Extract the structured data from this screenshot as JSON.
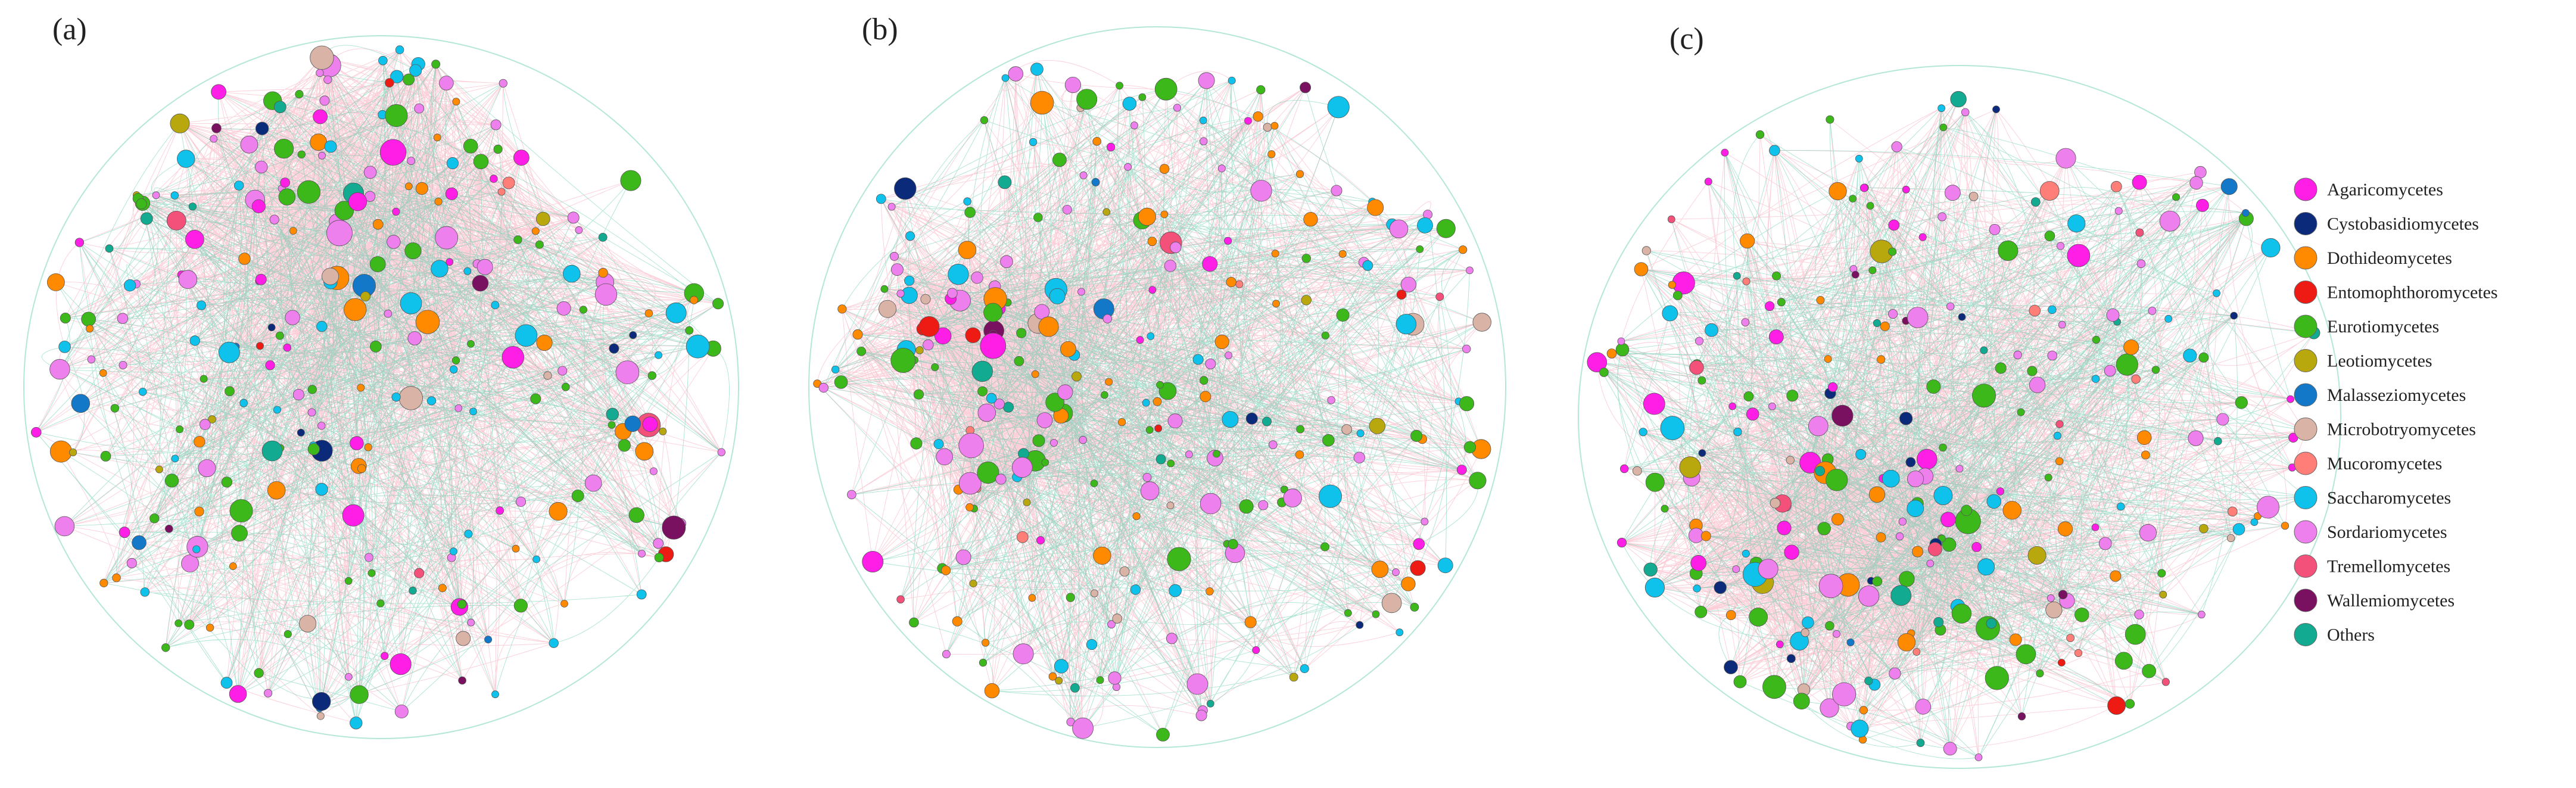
{
  "panels": [
    {
      "label": "(a)"
    },
    {
      "label": "(b)"
    },
    {
      "label": "(c)"
    }
  ],
  "legend": {
    "items": [
      {
        "label": "Agaricomycetes",
        "color": "#ff1ee6"
      },
      {
        "label": "Cystobasidiomycetes",
        "color": "#0b2a7a"
      },
      {
        "label": "Dothideomycetes",
        "color": "#ff8a00"
      },
      {
        "label": "Entomophthoromycetes",
        "color": "#ee1a14"
      },
      {
        "label": "Eurotiomycetes",
        "color": "#3cb81b"
      },
      {
        "label": "Leotiomycetes",
        "color": "#b8a80e"
      },
      {
        "label": "Malasseziomycetes",
        "color": "#1478c8"
      },
      {
        "label": "Microbotryomycetes",
        "color": "#d8b3a6"
      },
      {
        "label": "Mucoromycetes",
        "color": "#ff7f78"
      },
      {
        "label": "Saccharomycetes",
        "color": "#0fc2ec"
      },
      {
        "label": "Sordariomycetes",
        "color": "#ee80ee"
      },
      {
        "label": "Tremellomycetes",
        "color": "#f3507a"
      },
      {
        "label": "Wallemiomycetes",
        "color": "#7a1060"
      },
      {
        "label": "Others",
        "color": "#12aa90"
      }
    ]
  },
  "edge_colors": {
    "positive": "#f7a6b8",
    "negative": "#58c9a8"
  }
}
